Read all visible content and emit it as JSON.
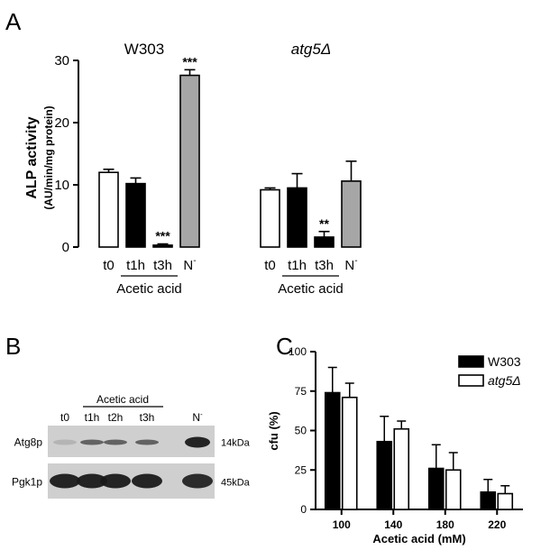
{
  "panels": {
    "a": "A",
    "b": "B",
    "c": "C"
  },
  "colors": {
    "control": "#ffffff",
    "treated": "#000000",
    "starvation": "#a6a6a6",
    "blot_background": "#cfcfcf",
    "band": "#1a1a1a"
  },
  "chart_data": [
    {
      "id": "panel-a",
      "type": "bar",
      "ylabel_line1": "ALP activity",
      "ylabel_line2": "(AU/min/mg protein)",
      "ylim": [
        0,
        30
      ],
      "yticks": [
        0,
        10,
        20,
        30
      ],
      "treatment_label": "Acetic acid",
      "groups": [
        {
          "title": "W303",
          "italic": false,
          "bars": [
            {
              "label": "t0",
              "value": 12.0,
              "error": 0.5,
              "fill": "control",
              "sig": ""
            },
            {
              "label": "t1h",
              "value": 10.2,
              "error": 0.9,
              "fill": "treated",
              "sig": ""
            },
            {
              "label": "t3h",
              "value": 0.3,
              "error": 0.2,
              "fill": "treated",
              "sig": "***"
            },
            {
              "label": "N",
              "value": 27.6,
              "error": 0.9,
              "fill": "starvation",
              "sig": "***"
            }
          ]
        },
        {
          "title": "atg5Δ",
          "italic": true,
          "bars": [
            {
              "label": "t0",
              "value": 9.2,
              "error": 0.3,
              "fill": "control",
              "sig": ""
            },
            {
              "label": "t1h",
              "value": 9.5,
              "error": 2.3,
              "fill": "treated",
              "sig": ""
            },
            {
              "label": "t3h",
              "value": 1.6,
              "error": 0.9,
              "fill": "treated",
              "sig": "**"
            },
            {
              "label": "N",
              "value": 10.6,
              "error": 3.2,
              "fill": "starvation",
              "sig": ""
            }
          ]
        }
      ],
      "superscript_minus": "-"
    },
    {
      "id": "panel-b",
      "type": "table",
      "treatment_label": "Acetic acid",
      "lanes": [
        "t0",
        "t1h",
        "t2h",
        "t3h",
        "N"
      ],
      "lane_superscript": "-",
      "rows": [
        {
          "label": "Atg8p",
          "size": "14kDa",
          "band_intensity": [
            0.15,
            0.6,
            0.6,
            0.6,
            0.95
          ]
        },
        {
          "label": "Pgk1p",
          "size": "45kDa",
          "band_intensity": [
            0.95,
            0.95,
            0.95,
            0.95,
            0.9
          ]
        }
      ]
    },
    {
      "id": "panel-c",
      "type": "bar",
      "categories": [
        "100",
        "140",
        "180",
        "220"
      ],
      "xlabel": "Acetic acid (mM)",
      "ylabel": "cfu (%)",
      "ylim": [
        0,
        100
      ],
      "yticks": [
        0,
        25,
        50,
        75,
        100
      ],
      "legend_position": "top-right",
      "series": [
        {
          "name": "W303",
          "italic": false,
          "fill": "treated",
          "values": [
            74,
            43,
            26,
            11
          ],
          "errors": [
            16,
            16,
            15,
            8
          ]
        },
        {
          "name": "atg5Δ",
          "italic": true,
          "fill": "control",
          "values": [
            71,
            51,
            25,
            10
          ],
          "errors": [
            9,
            5,
            11,
            5
          ]
        }
      ]
    }
  ]
}
